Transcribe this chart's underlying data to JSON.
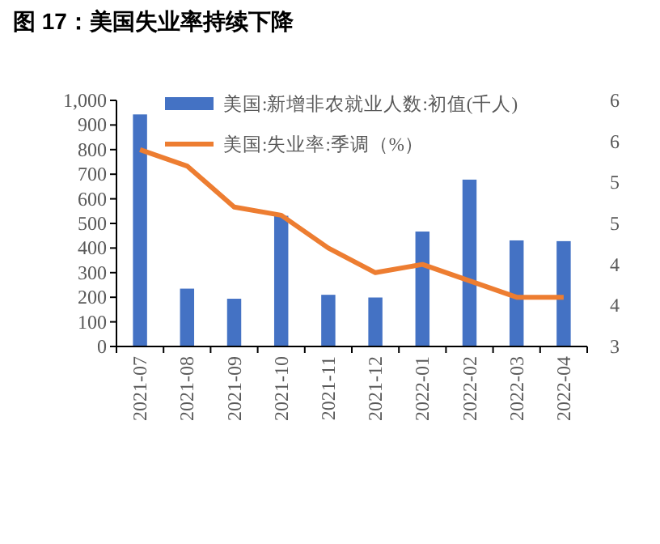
{
  "chart_data": {
    "type": "bar",
    "title": "图 17：美国失业率持续下降",
    "categories": [
      "2021-07",
      "2021-08",
      "2021-09",
      "2021-10",
      "2021-11",
      "2021-12",
      "2022-01",
      "2022-02",
      "2022-03",
      "2022-04"
    ],
    "series": [
      {
        "name": "美国:新增非农就业人数:初值(千人)",
        "color": "#4472c4",
        "values": [
          943,
          235,
          194,
          531,
          210,
          199,
          467,
          678,
          431,
          428
        ]
      },
      {
        "name": "美国:失业率:季调（%）",
        "type": "line",
        "axis": "y2",
        "color": "#ed7d31",
        "values": [
          5.4,
          5.2,
          4.7,
          4.6,
          4.2,
          3.9,
          4.0,
          3.8,
          3.6,
          3.6
        ]
      }
    ],
    "ylim": [
      0,
      1000
    ],
    "yticks": [
      0,
      {
        "value": 100,
        "label": "100"
      },
      200,
      300,
      400,
      500,
      600,
      700,
      800,
      900,
      {
        "value": 1000,
        "label": "1,000"
      }
    ],
    "y2lim": [
      3,
      6
    ],
    "y2ticks": [
      3,
      {
        "value": 3.5,
        "label": "4"
      },
      4,
      {
        "value": 4.5,
        "label": "5"
      },
      5,
      {
        "value": 5.5,
        "label": "6"
      },
      6
    ],
    "legend": "top right",
    "grid": false,
    "marker": "none"
  }
}
